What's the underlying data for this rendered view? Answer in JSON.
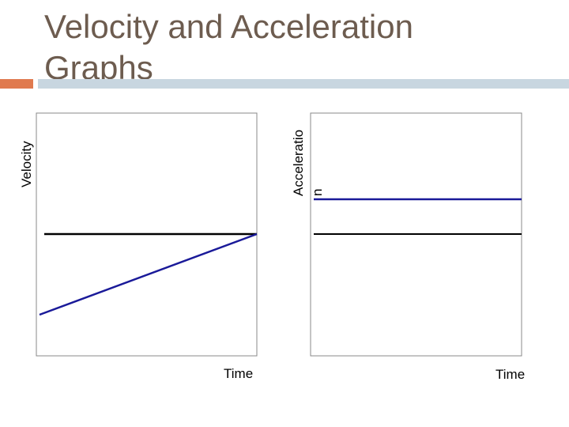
{
  "title": "Velocity and Acceleration\nGraphs",
  "velocity_graph": {
    "y_label": "Velocity",
    "x_label": "Time"
  },
  "acceleration_graph": {
    "y_label_line1": "Acceleratio",
    "y_label_line2": "n",
    "x_label": "Time"
  },
  "colors": {
    "title": "#6d5c4f",
    "accent_orange": "#e07a4f",
    "accent_blue": "#c8d6e0",
    "plot_line": "#1a1a99",
    "axis_line": "#000000"
  }
}
